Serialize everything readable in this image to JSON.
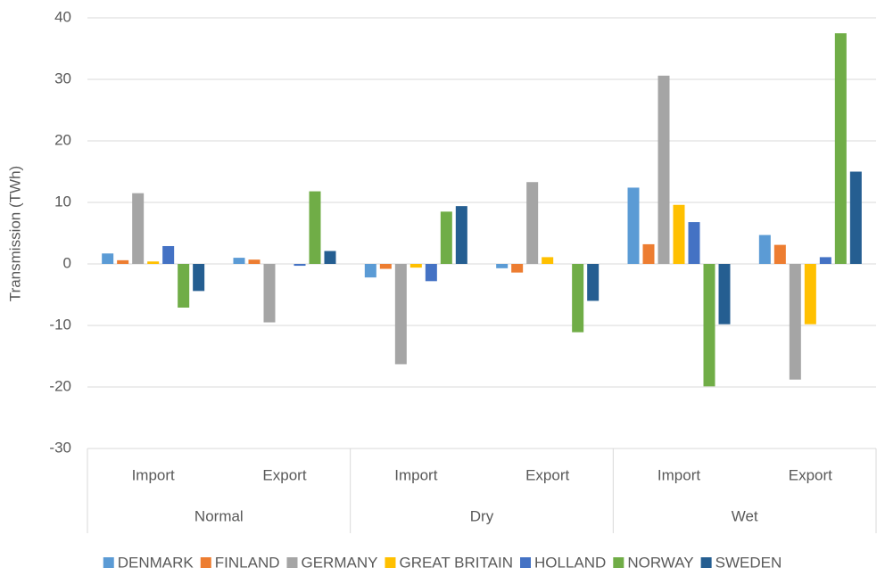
{
  "chart_data": {
    "type": "bar",
    "y_label": "Transmission (TWh)",
    "categories": [
      "Import",
      "Export",
      "Import",
      "Export",
      "Import",
      "Export"
    ],
    "groups": [
      "Normal",
      "Dry",
      "Wet"
    ],
    "series": [
      {
        "name": "DENMARK",
        "color": "#5b9bd5",
        "values": [
          1.7,
          1.0,
          -2.2,
          -0.7,
          12.4,
          4.7
        ]
      },
      {
        "name": "FINLAND",
        "color": "#ed7d31",
        "values": [
          0.6,
          0.7,
          -0.8,
          -1.4,
          3.2,
          3.1
        ]
      },
      {
        "name": "GERMANY",
        "color": "#a5a5a5",
        "values": [
          11.5,
          -9.5,
          -16.3,
          13.3,
          30.6,
          -18.8
        ]
      },
      {
        "name": "GREAT BRITAIN",
        "color": "#ffc000",
        "values": [
          0.4,
          0,
          -0.6,
          1.1,
          9.6,
          -9.8
        ]
      },
      {
        "name": "HOLLAND",
        "color": "#4472c4",
        "values": [
          2.9,
          -0.3,
          -2.8,
          0,
          6.8,
          1.1
        ]
      },
      {
        "name": "NORWAY",
        "color": "#70ad47",
        "values": [
          -7.1,
          11.8,
          8.5,
          -11.1,
          -19.9,
          37.5
        ]
      },
      {
        "name": "SWEDEN",
        "color": "#255e91",
        "values": [
          -4.4,
          2.1,
          9.4,
          -6.0,
          -9.8,
          15.0
        ]
      }
    ],
    "ylim": [
      -30,
      40
    ],
    "yticks": [
      -30,
      -20,
      -10,
      0,
      10,
      20,
      30,
      40
    ],
    "grid": true,
    "legend": "bottom"
  }
}
